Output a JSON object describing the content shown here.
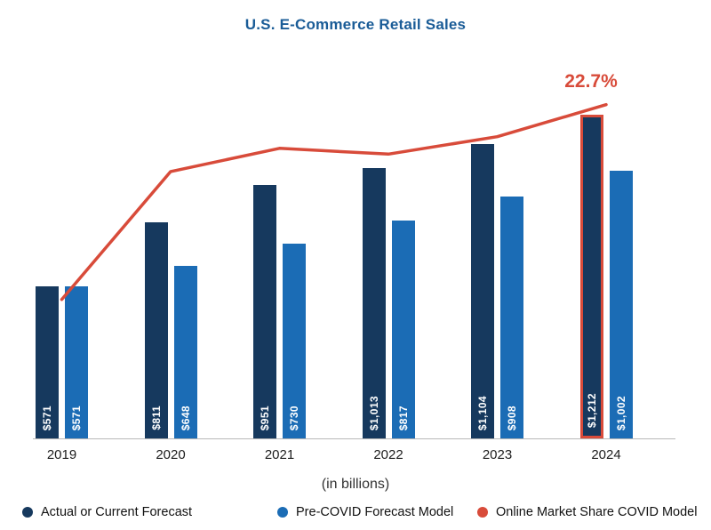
{
  "title": "U.S. E-Commerce Retail Sales",
  "axis_note": "(in billions)",
  "annotation": "22.7%",
  "colors": {
    "navy": "#16395e",
    "blue": "#1b6cb5",
    "red": "#d84b3a",
    "title_blue": "#1a5c97"
  },
  "chart_data": {
    "type": "bar",
    "categories": [
      "2019",
      "2020",
      "2021",
      "2022",
      "2023",
      "2024"
    ],
    "series": [
      {
        "name": "Actual or Current Forecast",
        "color_key": "navy",
        "values": [
          571,
          811,
          951,
          1013,
          1104,
          1212
        ],
        "labels": [
          "$571",
          "$811",
          "$951",
          "$1,013",
          "$1,104",
          "$1,212"
        ]
      },
      {
        "name": "Pre-COVID Forecast Model",
        "color_key": "blue",
        "values": [
          571,
          648,
          730,
          817,
          908,
          1002
        ],
        "labels": [
          "$571",
          "$648",
          "$730",
          "$817",
          "$908",
          "$1,002"
        ]
      }
    ],
    "line_series": {
      "name": "Online Market Share COVID Model",
      "color_key": "red",
      "values_pct_estimated": [
        16.0,
        20.4,
        21.2,
        21.0,
        21.6,
        22.7
      ],
      "labeled_point": {
        "category": "2024",
        "label": "22.7%"
      }
    },
    "highlight": {
      "category": "2024",
      "series": "Actual or Current Forecast"
    },
    "xlabel": "(in billions)",
    "ylabel": "",
    "grid": false,
    "legend_position": "bottom"
  },
  "legend": [
    {
      "label": "Actual or Current Forecast",
      "color": "#16395e"
    },
    {
      "label": "Pre-COVID Forecast Model",
      "color": "#1b6cb5"
    },
    {
      "label": "Online Market Share COVID Model",
      "color": "#d84b3a"
    }
  ]
}
